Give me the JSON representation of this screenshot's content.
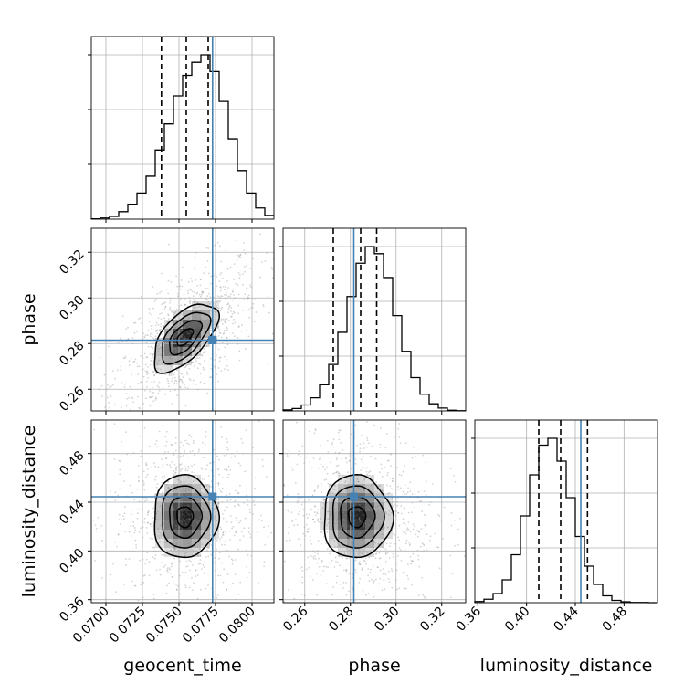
{
  "chart_data": {
    "type": "corner",
    "parameters": [
      "geocent_time",
      "phase",
      "luminosity_distance"
    ],
    "truths": {
      "geocent_time": 0.0773,
      "phase": 0.2815,
      "luminosity_distance": 0.4445
    },
    "quantiles": {
      "geocent_time": [
        0.0738,
        0.0755,
        0.077
      ],
      "phase": [
        0.2725,
        0.2845,
        0.2915
      ],
      "luminosity_distance": [
        0.41,
        0.428,
        0.45
      ]
    },
    "ranges": {
      "geocent_time": [
        0.069,
        0.0815
      ],
      "phase": [
        0.2505,
        0.3305
      ],
      "luminosity_distance": [
        0.3575,
        0.5075
      ]
    },
    "ticks": {
      "geocent_time": {
        "values": [
          0.07,
          0.0725,
          0.075,
          0.0775,
          0.08
        ],
        "labels": [
          "0.0700",
          "0.0725",
          "0.0750",
          "0.0775",
          "0.0800"
        ]
      },
      "phase": {
        "values": [
          0.26,
          0.28,
          0.3,
          0.32
        ],
        "labels": [
          "0.26",
          "0.28",
          "0.30",
          "0.32"
        ]
      },
      "luminosity_distance": {
        "values": [
          0.36,
          0.4,
          0.44,
          0.48
        ],
        "labels": [
          "0.36",
          "0.40",
          "0.44",
          "0.48"
        ]
      }
    },
    "histograms": {
      "geocent_time": {
        "edges_start": 0.069,
        "bin_width": 0.000625,
        "counts": [
          2,
          6,
          15,
          40,
          80,
          140,
          230,
          370,
          510,
          660,
          770,
          840,
          880,
          790,
          630,
          430,
          260,
          140,
          60,
          20
        ]
      },
      "phase": {
        "edges_start": 0.2505,
        "bin_width": 0.004,
        "counts": [
          4,
          10,
          25,
          55,
          110,
          195,
          330,
          480,
          620,
          690,
          660,
          560,
          400,
          250,
          140,
          70,
          30,
          12,
          3,
          1
        ]
      },
      "luminosity_distance": {
        "edges_start": 0.3575,
        "bin_width": 0.0075,
        "counts": [
          5,
          15,
          40,
          100,
          210,
          380,
          560,
          690,
          720,
          620,
          460,
          290,
          160,
          80,
          30,
          10,
          4,
          1,
          1,
          0
        ]
      }
    },
    "grid": true,
    "truth_color": "#4682b4"
  }
}
